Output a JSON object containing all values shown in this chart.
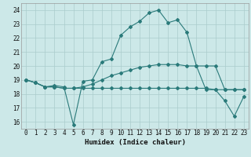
{
  "xlabel": "Humidex (Indice chaleur)",
  "bg_color": "#cce8e8",
  "grid_color": "#aacccc",
  "line_color": "#2a7a7a",
  "xlim": [
    -0.5,
    23.5
  ],
  "ylim": [
    15.5,
    24.5
  ],
  "xticks": [
    0,
    1,
    2,
    3,
    4,
    5,
    6,
    7,
    8,
    9,
    10,
    11,
    12,
    13,
    14,
    15,
    16,
    17,
    18,
    19,
    20,
    21,
    22,
    23
  ],
  "yticks": [
    16,
    17,
    18,
    19,
    20,
    21,
    22,
    23,
    24
  ],
  "series1_x": [
    0,
    1,
    2,
    3,
    4,
    5,
    6,
    7,
    8,
    9,
    10,
    11,
    12,
    13,
    14,
    15,
    16,
    17,
    18,
    19,
    20,
    21,
    22,
    23
  ],
  "series1_y": [
    19.0,
    18.8,
    18.5,
    18.6,
    18.5,
    15.8,
    18.9,
    19.0,
    20.3,
    20.5,
    22.2,
    22.8,
    23.2,
    23.8,
    24.0,
    23.1,
    23.3,
    22.4,
    20.0,
    18.3,
    18.3,
    17.5,
    16.4,
    17.8
  ],
  "series2_x": [
    0,
    1,
    2,
    3,
    4,
    5,
    6,
    7,
    8,
    9,
    10,
    11,
    12,
    13,
    14,
    15,
    16,
    17,
    18,
    19,
    20,
    21,
    22,
    23
  ],
  "series2_y": [
    19.0,
    18.8,
    18.5,
    18.5,
    18.4,
    18.4,
    18.4,
    18.4,
    18.4,
    18.4,
    18.4,
    18.4,
    18.4,
    18.4,
    18.4,
    18.4,
    18.4,
    18.4,
    18.4,
    18.4,
    18.3,
    18.3,
    18.3,
    18.3
  ],
  "series3_x": [
    0,
    1,
    2,
    3,
    4,
    5,
    6,
    7,
    8,
    9,
    10,
    11,
    12,
    13,
    14,
    15,
    16,
    17,
    18,
    19,
    20,
    21,
    22,
    23
  ],
  "series3_y": [
    19.0,
    18.8,
    18.5,
    18.5,
    18.4,
    18.4,
    18.5,
    18.7,
    19.0,
    19.3,
    19.5,
    19.7,
    19.9,
    20.0,
    20.1,
    20.1,
    20.1,
    20.0,
    20.0,
    20.0,
    20.0,
    18.3,
    18.3,
    18.3
  ],
  "xlabel_fontsize": 6.5,
  "tick_fontsize": 5.5,
  "linewidth": 0.8,
  "markersize": 2.0
}
